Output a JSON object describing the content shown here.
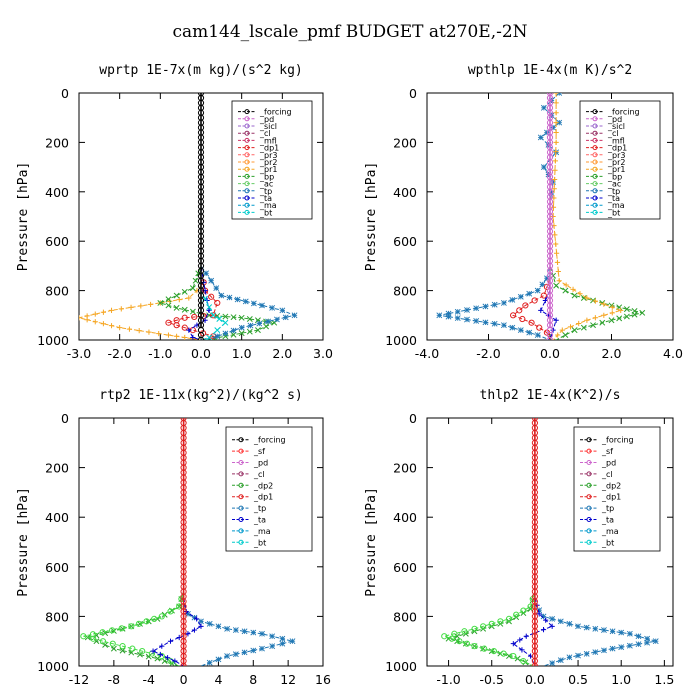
{
  "figure": {
    "title": "cam144_lscale_pmf  BUDGET at270E,-2N"
  },
  "chart_data": [
    {
      "type": "line",
      "title": "wprtp  1E-7x(m kg)/(s^2 kg)",
      "ylabel": "Pressure [hPa]",
      "xlim": [
        -3.0,
        3.0
      ],
      "ylim": [
        1000,
        0
      ],
      "xticks": [
        "-3.0",
        "-2.0",
        "-1.0",
        "0.0",
        "1.0",
        "2.0",
        "3.0"
      ],
      "yticks": [
        "0",
        "200",
        "400",
        "600",
        "800",
        "1000"
      ],
      "legend": [
        "_forcing",
        "_pd",
        "_sicl",
        "_cl",
        "_mfl",
        "_dp1",
        "_pr3",
        "_pr2",
        "_pr1",
        "_bp",
        "_ac",
        "_tp",
        "_ta",
        "_ma",
        "_bt"
      ],
      "legend_position": "top-right",
      "series": [
        {
          "name": "_forcing",
          "color": "#000000",
          "marker": "o",
          "x": [
            0,
            0,
            0,
            0,
            0,
            0,
            0,
            0,
            0,
            0,
            0,
            0,
            0,
            0,
            0,
            0,
            0,
            0,
            0,
            0
          ],
          "y": [
            0,
            50,
            100,
            150,
            200,
            250,
            300,
            350,
            400,
            450,
            500,
            550,
            600,
            650,
            700,
            750,
            800,
            850,
            900,
            950
          ]
        },
        {
          "name": "_pr1",
          "color": "#f5a623",
          "marker": "+",
          "x": [
            0,
            0,
            0,
            -0.1,
            -0.3,
            -1.0,
            -2.2,
            -3.0,
            -2.0,
            -0.8,
            0
          ],
          "y": [
            0,
            400,
            780,
            800,
            830,
            850,
            880,
            910,
            950,
            980,
            1000
          ]
        },
        {
          "name": "_bp",
          "color": "#2ca02c",
          "marker": "x",
          "x": [
            0,
            0,
            -0.2,
            -1.0,
            -0.6,
            0.2,
            1.0,
            1.8,
            1.4,
            0.6,
            0.1
          ],
          "y": [
            0,
            700,
            790,
            850,
            870,
            900,
            910,
            930,
            960,
            985,
            1000
          ]
        },
        {
          "name": "_dp1",
          "color": "#e02020",
          "marker": "o",
          "x": [
            0,
            0,
            0.1,
            0.4,
            0.3,
            -0.4,
            -0.8,
            -0.2,
            0.3,
            0.1
          ],
          "y": [
            0,
            700,
            800,
            850,
            900,
            910,
            930,
            960,
            985,
            1000
          ]
        },
        {
          "name": "_tp",
          "color": "#1f77b4",
          "marker": "*",
          "x": [
            0,
            0,
            0.5,
            1.5,
            2.0,
            2.3,
            1.0,
            0.4,
            0.1
          ],
          "y": [
            0,
            700,
            820,
            860,
            880,
            900,
            950,
            985,
            1000
          ]
        },
        {
          "name": "_ta",
          "color": "#0000cc",
          "marker": "+",
          "x": [
            0,
            0,
            0.1,
            0.2,
            0.1,
            -0.3,
            -0.2,
            0
          ],
          "y": [
            0,
            700,
            800,
            880,
            920,
            960,
            990,
            1000
          ]
        },
        {
          "name": "_ac",
          "color": "#00cccc",
          "marker": "x",
          "x": [
            0,
            0,
            0.3,
            0.6,
            0.4,
            0.2,
            0
          ],
          "y": [
            0,
            800,
            900,
            930,
            960,
            990,
            1000
          ]
        }
      ]
    },
    {
      "type": "line",
      "title": "wpthlp  1E-4x(m K)/s^2",
      "ylabel": "Pressure [hPa]",
      "xlim": [
        -4.0,
        4.0
      ],
      "ylim": [
        1000,
        0
      ],
      "xticks": [
        "-4.0",
        "-2.0",
        "0.0",
        "2.0",
        "4.0"
      ],
      "yticks": [
        "0",
        "200",
        "400",
        "600",
        "800",
        "1000"
      ],
      "legend": [
        "_forcing",
        "_pd",
        "_sicl",
        "_cl",
        "_mfl",
        "_dp1",
        "_pr3",
        "_pr2",
        "_pr1",
        "_bp",
        "_ac",
        "_tp",
        "_ta",
        "_ma",
        "_bt"
      ],
      "legend_position": "top-right",
      "series": [
        {
          "name": "_forcing",
          "color": "#cc66cc",
          "marker": "o",
          "x": [
            0,
            0,
            0,
            0,
            0,
            0,
            0,
            0,
            0,
            0,
            0,
            0,
            0,
            0,
            0,
            0,
            0,
            0,
            0,
            0
          ],
          "y": [
            0,
            50,
            100,
            150,
            200,
            250,
            300,
            350,
            400,
            450,
            500,
            550,
            600,
            650,
            700,
            750,
            800,
            850,
            900,
            950
          ]
        },
        {
          "name": "_tp",
          "color": "#1f77b4",
          "marker": "*",
          "x": [
            0.3,
            -0.2,
            0.3,
            -0.3,
            0.2,
            -0.2,
            0.1,
            0,
            0,
            0,
            -0.1,
            -0.4,
            -1.5,
            -3.6,
            -1.5,
            -0.4,
            0
          ],
          "y": [
            0,
            60,
            120,
            180,
            240,
            300,
            360,
            450,
            600,
            700,
            750,
            800,
            850,
            900,
            940,
            980,
            1000
          ]
        },
        {
          "name": "_bp",
          "color": "#2ca02c",
          "marker": "x",
          "x": [
            0,
            0,
            0.2,
            0.8,
            2.0,
            3.0,
            2.0,
            0.8,
            0.2
          ],
          "y": [
            0,
            700,
            780,
            820,
            860,
            890,
            920,
            960,
            1000
          ]
        },
        {
          "name": "_pr1",
          "color": "#f5a623",
          "marker": "+",
          "x": [
            0.2,
            0.2,
            0.1,
            0.3,
            1.2,
            2.3,
            1.2,
            0.4,
            0.1
          ],
          "y": [
            0,
            200,
            500,
            760,
            830,
            880,
            920,
            960,
            1000
          ]
        },
        {
          "name": "_dp1",
          "color": "#e02020",
          "marker": "o",
          "x": [
            0,
            0,
            -0.2,
            -0.8,
            -1.2,
            -0.6,
            -0.1,
            0
          ],
          "y": [
            0,
            750,
            820,
            860,
            900,
            930,
            970,
            1000
          ]
        },
        {
          "name": "_ta",
          "color": "#0000cc",
          "marker": "+",
          "x": [
            0,
            0,
            -0.3,
            0.2,
            0.1,
            0
          ],
          "y": [
            0,
            800,
            880,
            920,
            960,
            1000
          ]
        }
      ]
    },
    {
      "type": "line",
      "title": "rtp2  1E-11x(kg^2)/(kg^2 s)",
      "ylabel": "Pressure [hPa]",
      "xlim": [
        -12,
        16
      ],
      "ylim": [
        1000,
        0
      ],
      "xticks": [
        "-12",
        "-8",
        "-4",
        "0",
        "4",
        "8",
        "12",
        "16"
      ],
      "yticks": [
        "0",
        "200",
        "400",
        "600",
        "800",
        "1000"
      ],
      "legend": [
        "_forcing",
        "_sf",
        "_pd",
        "_cl",
        "_dp2",
        "_dp1",
        "_tp",
        "_ta",
        "_ma",
        "_bt"
      ],
      "legend_position": "top-right",
      "series": [
        {
          "name": "_forcing",
          "color": "#e02020",
          "marker": "o",
          "x": [
            0,
            0,
            0,
            0,
            0,
            0,
            0,
            0,
            0,
            0,
            0,
            0,
            0,
            0,
            0,
            0,
            0,
            0,
            0,
            0,
            0
          ],
          "y": [
            0,
            50,
            100,
            150,
            200,
            250,
            300,
            350,
            400,
            450,
            500,
            550,
            600,
            650,
            700,
            750,
            800,
            850,
            900,
            950,
            1000
          ]
        },
        {
          "name": "_dp2",
          "color": "#2ca02c",
          "marker": "x",
          "x": [
            0,
            0,
            -0.5,
            -3,
            -7,
            -11,
            -8,
            -3,
            -0.5
          ],
          "y": [
            0,
            700,
            760,
            810,
            850,
            885,
            930,
            970,
            1000
          ]
        },
        {
          "name": "_dp1",
          "color": "#44dd44",
          "marker": "o",
          "x": [
            0,
            0,
            -0.5,
            -2.5,
            -6,
            -11.5,
            -7,
            -2.5,
            -0.5
          ],
          "y": [
            0,
            700,
            760,
            800,
            840,
            880,
            920,
            960,
            1000
          ]
        },
        {
          "name": "_tp",
          "color": "#1f77b4",
          "marker": "*",
          "x": [
            0,
            0,
            0.5,
            2,
            5,
            9,
            12.5,
            9,
            5,
            2
          ],
          "y": [
            0,
            750,
            790,
            820,
            850,
            870,
            900,
            930,
            960,
            1000
          ]
        },
        {
          "name": "_ta",
          "color": "#0000cc",
          "marker": "+",
          "x": [
            0,
            0,
            0.3,
            1.5,
            2.0,
            0.5,
            -1.5,
            -3.5,
            -1.0,
            0
          ],
          "y": [
            0,
            720,
            780,
            810,
            840,
            870,
            900,
            940,
            980,
            1000
          ]
        }
      ]
    },
    {
      "type": "line",
      "title": "thlp2  1E-4x(K^2)/s",
      "ylabel": "Pressure [hPa]",
      "xlim": [
        -1.25,
        1.6
      ],
      "ylim": [
        1000,
        0
      ],
      "xticks": [
        "-1.0",
        "-0.5",
        "0.0",
        "0.5",
        "1.0",
        "1.5"
      ],
      "yticks": [
        "0",
        "200",
        "400",
        "600",
        "800",
        "1000"
      ],
      "legend": [
        "_forcing",
        "_sf",
        "_pd",
        "_cl",
        "_dp2",
        "_dp1",
        "_tp",
        "_ta",
        "_ma",
        "_bt"
      ],
      "legend_position": "top-right",
      "series": [
        {
          "name": "_forcing",
          "color": "#e02020",
          "marker": "o",
          "x": [
            0,
            0,
            0,
            0,
            0,
            0,
            0,
            0,
            0,
            0,
            0,
            0,
            0,
            0,
            0,
            0,
            0,
            0,
            0,
            0,
            0
          ],
          "y": [
            0,
            50,
            100,
            150,
            200,
            250,
            300,
            350,
            400,
            450,
            500,
            550,
            600,
            650,
            700,
            750,
            800,
            850,
            900,
            950,
            1000
          ]
        },
        {
          "name": "_dp2",
          "color": "#2ca02c",
          "marker": "x",
          "x": [
            0,
            0,
            -0.05,
            -0.3,
            -0.7,
            -1.0,
            -0.6,
            -0.2,
            -0.02
          ],
          "y": [
            0,
            700,
            770,
            820,
            860,
            890,
            930,
            970,
            1000
          ]
        },
        {
          "name": "_dp1",
          "color": "#44dd44",
          "marker": "o",
          "x": [
            0,
            0,
            -0.05,
            -0.3,
            -0.7,
            -1.05,
            -0.7,
            -0.25,
            -0.02
          ],
          "y": [
            0,
            700,
            760,
            810,
            850,
            880,
            920,
            960,
            1000
          ]
        },
        {
          "name": "_tp",
          "color": "#1f77b4",
          "marker": "*",
          "x": [
            0,
            0,
            0.1,
            0.5,
            1.1,
            1.4,
            0.9,
            0.4,
            0.1
          ],
          "y": [
            0,
            750,
            800,
            840,
            870,
            900,
            930,
            965,
            1000
          ]
        },
        {
          "name": "_ta",
          "color": "#0000cc",
          "marker": "+",
          "x": [
            0,
            0,
            0.05,
            0.2,
            -0.1,
            -0.25,
            -0.05,
            0
          ],
          "y": [
            0,
            720,
            790,
            840,
            880,
            910,
            960,
            1000
          ]
        }
      ]
    }
  ]
}
